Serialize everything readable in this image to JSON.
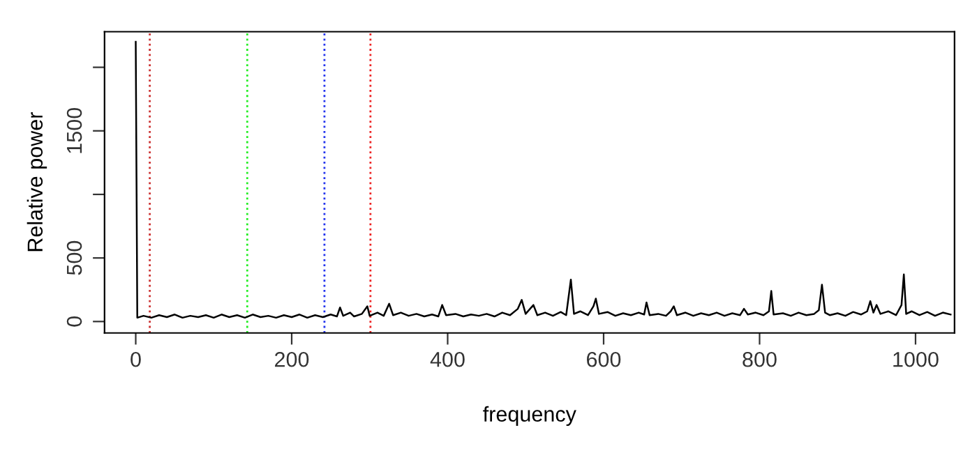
{
  "chart_data": {
    "type": "line",
    "xlabel": "frequency",
    "ylabel": "Relative power",
    "xlim": [
      -40,
      1050
    ],
    "ylim": [
      -90,
      2280
    ],
    "xticks": [
      0,
      200,
      400,
      600,
      800,
      1000
    ],
    "yticks": [
      0,
      500,
      {
        "value": 1000,
        "label": null
      },
      1500,
      {
        "value": 2000,
        "label": null
      }
    ],
    "grid": false,
    "marker": "none",
    "line_style": "solid",
    "ref_lines": [
      {
        "axis": "x",
        "value": 18,
        "color": "#cd3333",
        "line_style": "dotted"
      },
      {
        "axis": "x",
        "value": 143,
        "color": "#22ee22",
        "line_style": "dotted"
      },
      {
        "axis": "x",
        "value": 242,
        "color": "#2233ee",
        "line_style": "dotted"
      },
      {
        "axis": "x",
        "value": 301,
        "color": "#ee2222",
        "line_style": "dotted"
      }
    ],
    "series": [
      {
        "color": "#000000",
        "x": [
          0,
          2,
          10,
          20,
          30,
          40,
          50,
          60,
          70,
          80,
          90,
          100,
          110,
          120,
          130,
          140,
          150,
          160,
          170,
          180,
          190,
          200,
          210,
          220,
          230,
          240,
          250,
          258,
          262,
          266,
          275,
          280,
          290,
          297,
          300,
          310,
          318,
          325,
          330,
          340,
          350,
          360,
          370,
          380,
          388,
          393,
          398,
          410,
          420,
          430,
          440,
          450,
          460,
          470,
          480,
          490,
          495,
          500,
          510,
          515,
          525,
          535,
          545,
          552,
          558,
          562,
          570,
          580,
          587,
          590,
          594,
          605,
          615,
          625,
          635,
          645,
          652,
          655,
          659,
          670,
          680,
          686,
          690,
          694,
          705,
          715,
          725,
          735,
          745,
          755,
          765,
          775,
          780,
          785,
          795,
          805,
          812,
          815,
          818,
          830,
          840,
          850,
          860,
          870,
          876,
          880,
          884,
          890,
          900,
          910,
          920,
          930,
          938,
          942,
          946,
          950,
          955,
          965,
          975,
          982,
          985,
          988,
          995,
          1005,
          1015,
          1025,
          1035,
          1045
        ],
        "values": [
          2200,
          30,
          45,
          30,
          50,
          35,
          55,
          30,
          45,
          35,
          50,
          30,
          55,
          35,
          50,
          30,
          55,
          35,
          45,
          30,
          50,
          35,
          55,
          30,
          50,
          35,
          55,
          40,
          110,
          45,
          70,
          40,
          60,
          120,
          45,
          70,
          45,
          140,
          50,
          70,
          45,
          60,
          40,
          55,
          40,
          130,
          50,
          60,
          40,
          55,
          45,
          60,
          40,
          70,
          50,
          100,
          170,
          60,
          130,
          50,
          70,
          45,
          75,
          50,
          330,
          60,
          80,
          50,
          120,
          180,
          60,
          75,
          45,
          65,
          50,
          70,
          55,
          150,
          50,
          60,
          45,
          80,
          120,
          50,
          70,
          45,
          65,
          50,
          70,
          45,
          65,
          50,
          100,
          55,
          70,
          50,
          80,
          240,
          55,
          65,
          45,
          70,
          50,
          60,
          90,
          290,
          70,
          50,
          65,
          45,
          75,
          55,
          80,
          160,
          70,
          130,
          60,
          80,
          50,
          130,
          370,
          60,
          80,
          50,
          75,
          45,
          70,
          55
        ]
      }
    ]
  }
}
